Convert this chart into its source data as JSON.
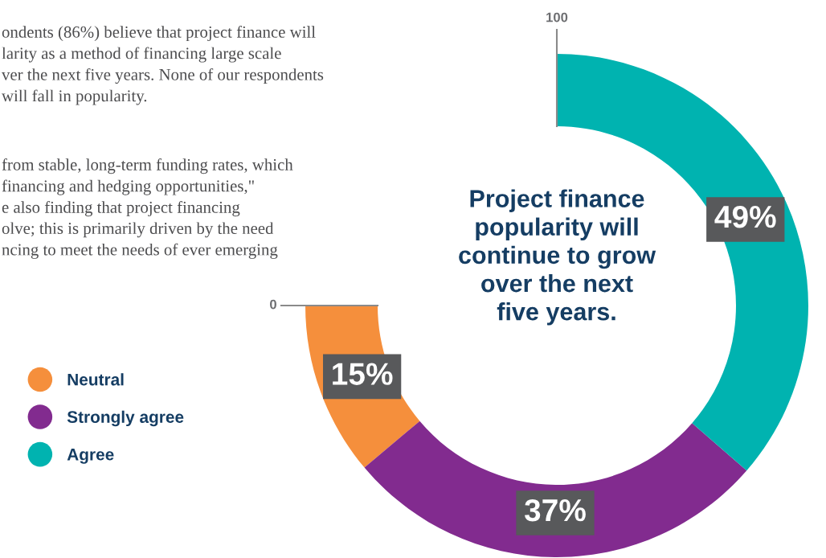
{
  "chart_data": {
    "type": "donut",
    "title": "Project finance\npopularity will\ncontinue to grow\nover the next\nfive years.",
    "categories": [
      "Neutral",
      "Strongly agree",
      "Agree"
    ],
    "values": [
      15,
      37,
      49
    ],
    "colors": [
      "#f58f3c",
      "#822b8f",
      "#00b3b0"
    ],
    "value_labels": [
      "15%",
      "37%",
      "49%"
    ],
    "legend": "left",
    "annotations": [
      "ondents (86%) believe that project finance will\nlarity as a method of financing large scale\nver the next five years. None of our respondents\nwill fall in popularity.",
      "from stable, long-term funding rates, which\nfinancing and hedging opportunities,\"\ne also finding that project financing\nolve; this is primarily driven by the need\nncing to meet the needs of ever emerging",
      "0",
      "100"
    ]
  }
}
